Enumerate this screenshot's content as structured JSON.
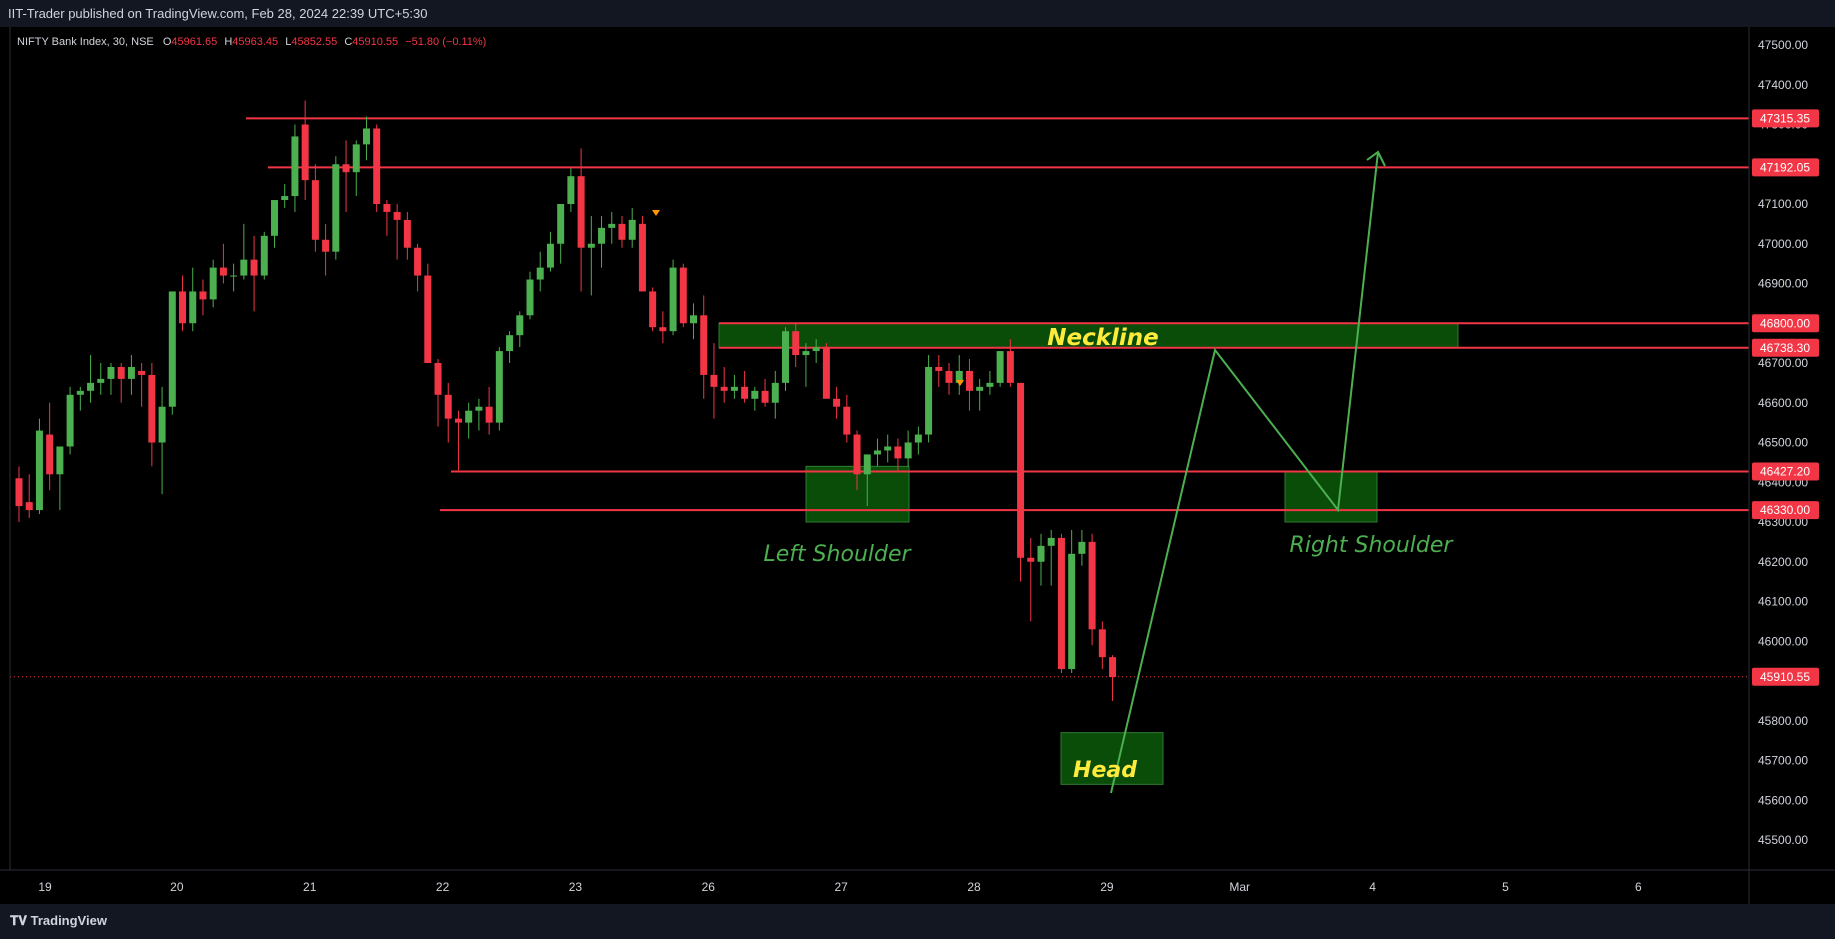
{
  "header": {
    "published": "IIT-Trader published on TradingView.com, Feb 28, 2024 22:39 UTC+5:30"
  },
  "legend": {
    "symbol": "NIFTY Bank Index, 30, NSE",
    "o_label": "O",
    "o": "45961.65",
    "h_label": "H",
    "h": "45963.45",
    "l_label": "L",
    "l": "45852.55",
    "c_label": "C",
    "c": "45910.55",
    "change": "−51.80 (−0.11%)"
  },
  "footer": {
    "brand": "TradingView"
  },
  "colors": {
    "bull": "#4caf50",
    "bear": "#f23645",
    "level": "#f23645",
    "zone_fill": "#0b5a0b",
    "zone_stroke": "#2e7d32",
    "label_yellow": "#ffeb3b",
    "label_green": "#4caf50",
    "arrow": "#4caf50"
  },
  "chart_data": {
    "type": "candlestick",
    "ylim": [
      45430,
      47560
    ],
    "y_ticks": [
      "45500.00",
      "45600.00",
      "45700.00",
      "45800.00",
      "45900.00",
      "46000.00",
      "46100.00",
      "46200.00",
      "46300.00",
      "46400.00",
      "46500.00",
      "46600.00",
      "46700.00",
      "46800.00",
      "46900.00",
      "47000.00",
      "47100.00",
      "47200.00",
      "47300.00",
      "47400.00",
      "47500.00"
    ],
    "x_ticks": [
      {
        "label": "19",
        "bar": 0
      },
      {
        "label": "20",
        "bar": 13
      },
      {
        "label": "21",
        "bar": 26
      },
      {
        "label": "22",
        "bar": 39
      },
      {
        "label": "23",
        "bar": 52
      },
      {
        "label": "26",
        "bar": 65
      },
      {
        "label": "27",
        "bar": 78
      },
      {
        "label": "28",
        "bar": 91
      },
      {
        "label": "29",
        "bar": 104
      },
      {
        "label": "Mar",
        "bar": 117
      },
      {
        "label": "4",
        "bar": 130
      },
      {
        "label": "5",
        "bar": 143
      },
      {
        "label": "6",
        "bar": 156
      }
    ],
    "candles": [
      [
        46410,
        46440,
        46300,
        46340
      ],
      [
        46350,
        46420,
        46310,
        46330
      ],
      [
        46330,
        46560,
        46320,
        46530
      ],
      [
        46520,
        46600,
        46380,
        46420
      ],
      [
        46420,
        46480,
        46330,
        46490
      ],
      [
        46490,
        46640,
        46470,
        46620
      ],
      [
        46620,
        46640,
        46580,
        46630
      ],
      [
        46630,
        46720,
        46600,
        46650
      ],
      [
        46650,
        46700,
        46620,
        46660
      ],
      [
        46660,
        46700,
        46620,
        46690
      ],
      [
        46690,
        46700,
        46600,
        46660
      ],
      [
        46660,
        46720,
        46620,
        46690
      ],
      [
        46680,
        46700,
        46590,
        46670
      ],
      [
        46670,
        46700,
        46440,
        46500
      ],
      [
        46500,
        46640,
        46370,
        46590
      ],
      [
        46590,
        46880,
        46570,
        46880
      ],
      [
        46880,
        46920,
        46780,
        46800
      ],
      [
        46800,
        46940,
        46780,
        46880
      ],
      [
        46880,
        46910,
        46820,
        46860
      ],
      [
        46860,
        46960,
        46840,
        46940
      ],
      [
        46940,
        47000,
        46900,
        46920
      ],
      [
        46920,
        46950,
        46880,
        46920
      ],
      [
        46920,
        47050,
        46910,
        46960
      ],
      [
        46960,
        47020,
        46830,
        46920
      ],
      [
        46920,
        47030,
        46910,
        47020
      ],
      [
        47020,
        47100,
        46990,
        47110
      ],
      [
        47110,
        47150,
        47090,
        47120
      ],
      [
        47120,
        47300,
        47080,
        47270
      ],
      [
        47300,
        47360,
        47110,
        47160
      ],
      [
        47160,
        47200,
        46980,
        47010
      ],
      [
        47010,
        47050,
        46920,
        46980
      ],
      [
        46980,
        47220,
        46960,
        47200
      ],
      [
        47200,
        47260,
        47080,
        47180
      ],
      [
        47180,
        47260,
        47120,
        47250
      ],
      [
        47250,
        47320,
        47210,
        47290
      ],
      [
        47290,
        47300,
        47080,
        47100
      ],
      [
        47100,
        47110,
        47020,
        47080
      ],
      [
        47080,
        47100,
        46960,
        47060
      ],
      [
        47060,
        47080,
        46960,
        46990
      ],
      [
        46990,
        47000,
        46880,
        46920
      ],
      [
        46920,
        46950,
        46700,
        46700
      ],
      [
        46700,
        46710,
        46540,
        46620
      ],
      [
        46620,
        46650,
        46500,
        46560
      ],
      [
        46560,
        46580,
        46430,
        46550
      ],
      [
        46550,
        46600,
        46510,
        46580
      ],
      [
        46580,
        46610,
        46530,
        46590
      ],
      [
        46590,
        46640,
        46520,
        46550
      ],
      [
        46550,
        46740,
        46530,
        46730
      ],
      [
        46730,
        46780,
        46700,
        46770
      ],
      [
        46770,
        46830,
        46740,
        46820
      ],
      [
        46820,
        46930,
        46810,
        46910
      ],
      [
        46910,
        46980,
        46880,
        46940
      ],
      [
        46940,
        47030,
        46930,
        47000
      ],
      [
        47000,
        47100,
        46950,
        47100
      ],
      [
        47100,
        47190,
        47080,
        47170
      ],
      [
        47170,
        47240,
        46880,
        46990
      ],
      [
        46990,
        47070,
        46870,
        47000
      ],
      [
        47000,
        47070,
        46940,
        47040
      ],
      [
        47040,
        47080,
        47000,
        47050
      ],
      [
        47050,
        47070,
        46990,
        47010
      ],
      [
        47010,
        47090,
        46990,
        47060
      ],
      [
        47050,
        47070,
        46900,
        46880
      ],
      [
        46880,
        46890,
        46780,
        46790
      ],
      [
        46790,
        46830,
        46750,
        46780
      ],
      [
        46780,
        46960,
        46770,
        46940
      ],
      [
        46940,
        46950,
        46790,
        46800
      ],
      [
        46800,
        46850,
        46760,
        46820
      ],
      [
        46820,
        46870,
        46610,
        46670
      ],
      [
        46670,
        46750,
        46560,
        46640
      ],
      [
        46640,
        46690,
        46600,
        46630
      ],
      [
        46630,
        46670,
        46610,
        46640
      ],
      [
        46640,
        46680,
        46600,
        46610
      ],
      [
        46610,
        46640,
        46580,
        46630
      ],
      [
        46630,
        46660,
        46590,
        46600
      ],
      [
        46600,
        46680,
        46560,
        46650
      ],
      [
        46650,
        46790,
        46630,
        46780
      ],
      [
        46780,
        46800,
        46690,
        46720
      ],
      [
        46720,
        46750,
        46640,
        46730
      ],
      [
        46730,
        46760,
        46700,
        46740
      ],
      [
        46740,
        46750,
        46620,
        46610
      ],
      [
        46610,
        46640,
        46560,
        46590
      ],
      [
        46590,
        46620,
        46500,
        46520
      ],
      [
        46520,
        46530,
        46380,
        46420
      ],
      [
        46420,
        46460,
        46340,
        46470
      ],
      [
        46470,
        46510,
        46440,
        46480
      ],
      [
        46480,
        46520,
        46450,
        46490
      ],
      [
        46490,
        46510,
        46430,
        46460
      ],
      [
        46460,
        46530,
        46440,
        46500
      ],
      [
        46500,
        46540,
        46470,
        46520
      ],
      [
        46520,
        46720,
        46500,
        46690
      ],
      [
        46690,
        46720,
        46640,
        46680
      ],
      [
        46680,
        46700,
        46620,
        46650
      ],
      [
        46650,
        46720,
        46620,
        46680
      ],
      [
        46680,
        46710,
        46580,
        46630
      ],
      [
        46630,
        46660,
        46580,
        46640
      ],
      [
        46640,
        46680,
        46620,
        46650
      ],
      [
        46650,
        46730,
        46640,
        46730
      ],
      [
        46730,
        46760,
        46640,
        46650
      ],
      [
        46650,
        46650,
        46150,
        46210
      ],
      [
        46210,
        46260,
        46050,
        46200
      ],
      [
        46200,
        46270,
        46140,
        46240
      ],
      [
        46240,
        46280,
        46140,
        46260
      ],
      [
        46260,
        46270,
        45920,
        45930
      ],
      [
        45930,
        46280,
        45920,
        46220
      ],
      [
        46220,
        46280,
        46190,
        46250
      ],
      [
        46250,
        46270,
        45990,
        46030
      ],
      [
        46030,
        46050,
        45930,
        45960
      ],
      [
        45960,
        45965,
        45850,
        45910
      ]
    ],
    "levels": [
      {
        "label": "47315.35",
        "value": 47315.35
      },
      {
        "label": "47192.05",
        "value": 47192.05
      },
      {
        "label": "46800.00",
        "value": 46800.0
      },
      {
        "label": "46738.30",
        "value": 46738.3
      },
      {
        "label": "46427.20",
        "value": 46427.2
      },
      {
        "label": "46330.00",
        "value": 46330.0
      }
    ],
    "last_price": {
      "label": "45910.55",
      "value": 45910.55
    },
    "annotations": {
      "neckline": "Neckline",
      "left_shoulder": "Left Shoulder",
      "right_shoulder": "Right Shoulder",
      "head": "Head"
    }
  }
}
